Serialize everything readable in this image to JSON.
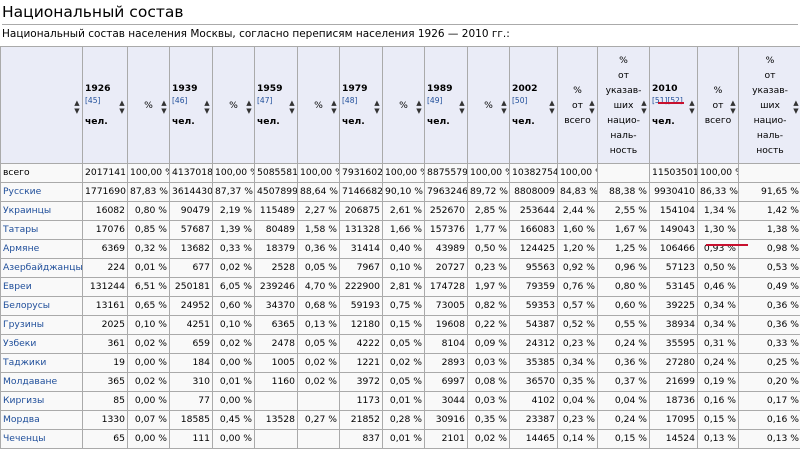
{
  "heading": "Национальный состав",
  "caption": "Национальный состав населения Москвы, согласно переписям населения 1926 — 2010 гг.:",
  "header": {
    "years": [
      {
        "year": "1926",
        "ref": "[45]"
      },
      {
        "year": "1939",
        "ref": "[46]"
      },
      {
        "year": "1959",
        "ref": "[47]"
      },
      {
        "year": "1979",
        "ref": "[48]"
      },
      {
        "year": "1989",
        "ref": "[49]"
      },
      {
        "year": "2002",
        "ref": "[50]"
      },
      {
        "year": "2010",
        "ref": "[51][52]"
      }
    ],
    "people_unit": "чел.",
    "pct": "%",
    "pct_of_total": [
      "%",
      "от",
      "всего"
    ],
    "pct_of_declared": [
      "%",
      "от",
      "указав-",
      "ших",
      "нацио-",
      "наль-",
      "ность"
    ]
  },
  "sort_icon": "sort-arrows-icon",
  "colors": {
    "header_bg": "#eaecf7",
    "cell_bg": "#f9f9f9",
    "border": "#aaaaaa",
    "link": "#1f4e9a",
    "marker": "#c8102e"
  },
  "rows": [
    {
      "name": "всего",
      "link": false,
      "v": [
        "2017141",
        "100,00 %",
        "4137018",
        "100,00 %",
        "5085581",
        "100,00 %",
        "7931602",
        "100,00 %",
        "8875579",
        "100,00 %",
        "10382754",
        "100,00 %",
        "",
        "11503501",
        "100,00 %",
        ""
      ]
    },
    {
      "name": "Русские",
      "link": true,
      "v": [
        "1771690",
        "87,83 %",
        "3614430",
        "87,37 %",
        "4507899",
        "88,64 %",
        "7146682",
        "90,10 %",
        "7963246",
        "89,72 %",
        "8808009",
        "84,83 %",
        "88,38 %",
        "9930410",
        "86,33 %",
        "91,65 %"
      ]
    },
    {
      "name": "Украинцы",
      "link": true,
      "v": [
        "16082",
        "0,80 %",
        "90479",
        "2,19 %",
        "115489",
        "2,27 %",
        "206875",
        "2,61 %",
        "252670",
        "2,85 %",
        "253644",
        "2,44 %",
        "2,55 %",
        "154104",
        "1,34 %",
        "1,42 %"
      ]
    },
    {
      "name": "Татары",
      "link": true,
      "v": [
        "17076",
        "0,85 %",
        "57687",
        "1,39 %",
        "80489",
        "1,58 %",
        "131328",
        "1,66 %",
        "157376",
        "1,77 %",
        "166083",
        "1,60 %",
        "1,67 %",
        "149043",
        "1,30 %",
        "1,38 %"
      ]
    },
    {
      "name": "Армяне",
      "link": true,
      "v": [
        "6369",
        "0,32 %",
        "13682",
        "0,33 %",
        "18379",
        "0,36 %",
        "31414",
        "0,40 %",
        "43989",
        "0,50 %",
        "124425",
        "1,20 %",
        "1,25 %",
        "106466",
        "0,93 %",
        "0,98 %"
      ]
    },
    {
      "name": "Азербайджанцы",
      "link": true,
      "v": [
        "224",
        "0,01 %",
        "677",
        "0,02 %",
        "2528",
        "0,05 %",
        "7967",
        "0,10 %",
        "20727",
        "0,23 %",
        "95563",
        "0,92 %",
        "0,96 %",
        "57123",
        "0,50 %",
        "0,53 %"
      ]
    },
    {
      "name": "Евреи",
      "link": true,
      "v": [
        "131244",
        "6,51 %",
        "250181",
        "6,05 %",
        "239246",
        "4,70 %",
        "222900",
        "2,81 %",
        "174728",
        "1,97 %",
        "79359",
        "0,76 %",
        "0,80 %",
        "53145",
        "0,46 %",
        "0,49 %"
      ]
    },
    {
      "name": "Белорусы",
      "link": true,
      "v": [
        "13161",
        "0,65 %",
        "24952",
        "0,60 %",
        "34370",
        "0,68 %",
        "59193",
        "0,75 %",
        "73005",
        "0,82 %",
        "59353",
        "0,57 %",
        "0,60 %",
        "39225",
        "0,34 %",
        "0,36 %"
      ]
    },
    {
      "name": "Грузины",
      "link": true,
      "v": [
        "2025",
        "0,10 %",
        "4251",
        "0,10 %",
        "6365",
        "0,13 %",
        "12180",
        "0,15 %",
        "19608",
        "0,22 %",
        "54387",
        "0,52 %",
        "0,55 %",
        "38934",
        "0,34 %",
        "0,36 %"
      ]
    },
    {
      "name": "Узбеки",
      "link": true,
      "v": [
        "361",
        "0,02 %",
        "659",
        "0,02 %",
        "2478",
        "0,05 %",
        "4222",
        "0,05 %",
        "8104",
        "0,09 %",
        "24312",
        "0,23 %",
        "0,24 %",
        "35595",
        "0,31 %",
        "0,33 %"
      ]
    },
    {
      "name": "Таджики",
      "link": true,
      "v": [
        "19",
        "0,00 %",
        "184",
        "0,00 %",
        "1005",
        "0,02 %",
        "1221",
        "0,02 %",
        "2893",
        "0,03 %",
        "35385",
        "0,34 %",
        "0,36 %",
        "27280",
        "0,24 %",
        "0,25 %"
      ]
    },
    {
      "name": "Молдаване",
      "link": true,
      "v": [
        "365",
        "0,02 %",
        "310",
        "0,01 %",
        "1160",
        "0,02 %",
        "3972",
        "0,05 %",
        "6997",
        "0,08 %",
        "36570",
        "0,35 %",
        "0,37 %",
        "21699",
        "0,19 %",
        "0,20 %"
      ]
    },
    {
      "name": "Киргизы",
      "link": true,
      "v": [
        "85",
        "0,00 %",
        "77",
        "0,00 %",
        "",
        "",
        "1173",
        "0,01 %",
        "3044",
        "0,03 %",
        "4102",
        "0,04 %",
        "0,04 %",
        "18736",
        "0,16 %",
        "0,17 %"
      ]
    },
    {
      "name": "Мордва",
      "link": true,
      "v": [
        "1330",
        "0,07 %",
        "18585",
        "0,45 %",
        "13528",
        "0,27 %",
        "21852",
        "0,28 %",
        "30916",
        "0,35 %",
        "23387",
        "0,23 %",
        "0,24 %",
        "17095",
        "0,15 %",
        "0,16 %"
      ]
    },
    {
      "name": "Чеченцы",
      "link": true,
      "v": [
        "65",
        "0,00 %",
        "111",
        "0,00 %",
        "",
        "",
        "837",
        "0,01 %",
        "2101",
        "0,02 %",
        "14465",
        "0,14 %",
        "0,15 %",
        "14524",
        "0,13 %",
        "0,13 %"
      ]
    }
  ]
}
